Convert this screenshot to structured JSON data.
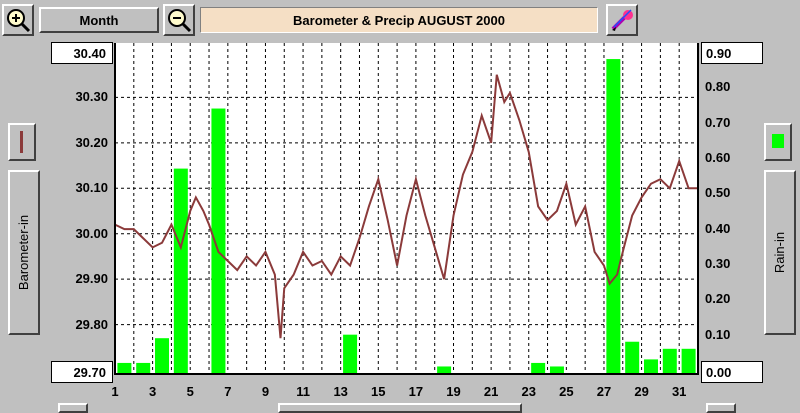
{
  "toolbar": {
    "period_label": "Month",
    "zoom_in_icon": "zoom-in-icon",
    "zoom_out_icon": "zoom-out-icon",
    "settings_icon": "pen-settings-icon"
  },
  "left_panel": {
    "axis_label": "Barometer-in",
    "legend_swatch_color": "#8b3a3a"
  },
  "right_panel": {
    "axis_label": "Rain-in",
    "legend_swatch_color": "#00ff00"
  },
  "chart_data": {
    "type": "bar+line",
    "title": "Barometer & Precip  AUGUST 2000",
    "x_ticks": [
      "1",
      "3",
      "5",
      "7",
      "9",
      "11",
      "13",
      "15",
      "17",
      "19",
      "21",
      "23",
      "25",
      "27",
      "29",
      "31"
    ],
    "xlim": [
      1,
      32
    ],
    "grid": true,
    "left_axis": {
      "label": "Barometer-in",
      "ticks": [
        "30.40",
        "30.30",
        "30.20",
        "30.10",
        "30.00",
        "29.90",
        "29.80",
        "29.70"
      ],
      "ylim": [
        29.7,
        30.4
      ]
    },
    "right_axis": {
      "label": "Rain-in",
      "ticks": [
        "0.90",
        "0.80",
        "0.70",
        "0.60",
        "0.50",
        "0.40",
        "0.30",
        "0.20",
        "0.10",
        "0.00"
      ],
      "ylim": [
        0.0,
        0.9
      ]
    },
    "rain_series": {
      "name": "Rain-in",
      "color": "#00ff00",
      "days": [
        1,
        2,
        3,
        4,
        5,
        6,
        7,
        8,
        9,
        10,
        11,
        12,
        13,
        14,
        15,
        16,
        17,
        18,
        19,
        20,
        21,
        22,
        23,
        24,
        25,
        26,
        27,
        28,
        29,
        30,
        31
      ],
      "values": [
        0.02,
        0.02,
        0.09,
        0.57,
        0,
        0.74,
        0,
        0,
        0,
        0,
        0,
        0,
        0.1,
        0,
        0,
        0,
        0,
        0.01,
        0,
        0,
        0,
        0,
        0.02,
        0.01,
        0,
        0,
        0.88,
        0.08,
        0.03,
        0.06,
        0.06
      ]
    },
    "barometer_series": {
      "name": "Barometer-in",
      "color": "#8b3a3a",
      "x": [
        1,
        1.5,
        2,
        2.5,
        3,
        3.5,
        4,
        4.5,
        5,
        5.3,
        5.7,
        6,
        6.5,
        7,
        7.5,
        8,
        8.5,
        9,
        9.5,
        9.8,
        10,
        10.5,
        11,
        11.5,
        12,
        12.5,
        13,
        13.5,
        14,
        14.5,
        15,
        15.5,
        16,
        16.5,
        17,
        17.5,
        18,
        18.5,
        19,
        19.5,
        20,
        20.5,
        21,
        21.3,
        21.7,
        22,
        22.5,
        23,
        23.5,
        24,
        24.5,
        25,
        25.5,
        26,
        26.5,
        27,
        27.3,
        27.7,
        28,
        28.5,
        29,
        29.5,
        30,
        30.5,
        31,
        31.5,
        32
      ],
      "values": [
        30.02,
        30.01,
        30.01,
        29.99,
        29.97,
        29.98,
        30.02,
        29.97,
        30.05,
        30.08,
        30.05,
        30.02,
        29.96,
        29.94,
        29.92,
        29.95,
        29.93,
        29.96,
        29.91,
        29.77,
        29.88,
        29.91,
        29.96,
        29.93,
        29.94,
        29.91,
        29.95,
        29.93,
        29.99,
        30.06,
        30.12,
        30.03,
        29.93,
        30.04,
        30.12,
        30.04,
        29.97,
        29.9,
        30.04,
        30.13,
        30.18,
        30.26,
        30.2,
        30.35,
        30.29,
        30.31,
        30.25,
        30.18,
        30.06,
        30.03,
        30.05,
        30.11,
        30.02,
        30.06,
        29.96,
        29.93,
        29.89,
        29.91,
        29.96,
        30.04,
        30.08,
        30.11,
        30.12,
        30.1,
        30.16,
        30.1,
        30.1
      ]
    }
  }
}
